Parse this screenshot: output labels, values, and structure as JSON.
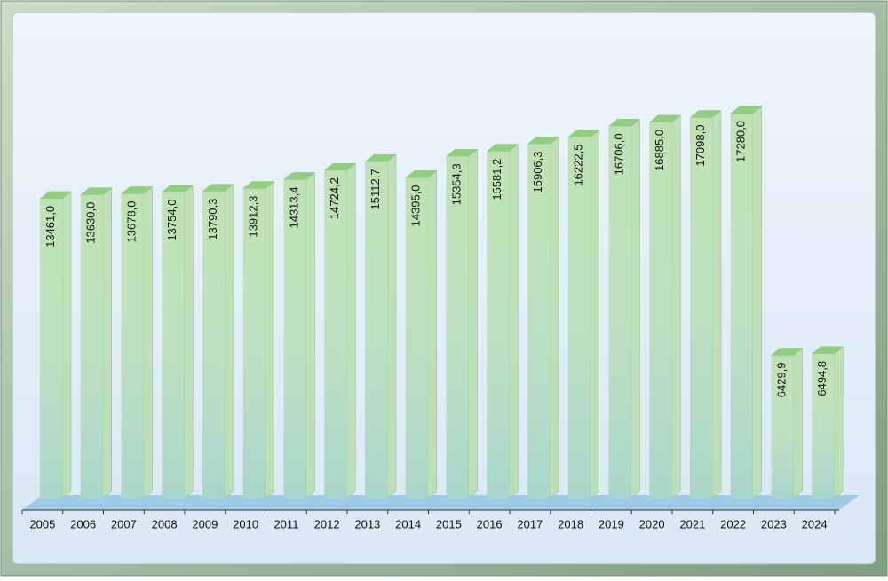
{
  "chart_data": {
    "type": "bar",
    "categories": [
      "2005",
      "2006",
      "2007",
      "2008",
      "2009",
      "2010",
      "2011",
      "2012",
      "2013",
      "2014",
      "2015",
      "2016",
      "2017",
      "2018",
      "2019",
      "2020",
      "2021",
      "2022",
      "2023",
      "2024"
    ],
    "values": [
      13461.0,
      13630.0,
      13678.0,
      13754.0,
      13790.3,
      13912.3,
      14313.4,
      14724.2,
      15112.7,
      14395.0,
      15354.3,
      15581.2,
      15906.3,
      16222.5,
      16706.0,
      16885.0,
      17098.0,
      17280.0,
      6429.9,
      6494.8
    ],
    "value_labels": [
      "13461,0",
      "13630,0",
      "13678,0",
      "13754,0",
      "13790,3",
      "13912,3",
      "14313,4",
      "14724,2",
      "15112,7",
      "14395,0",
      "15354,3",
      "15581,2",
      "15906,3",
      "16222,5",
      "16706,0",
      "16885,0",
      "17098,0",
      "17280,0",
      "6429,9",
      "6494,8"
    ],
    "color": "#b3dca6"
  }
}
